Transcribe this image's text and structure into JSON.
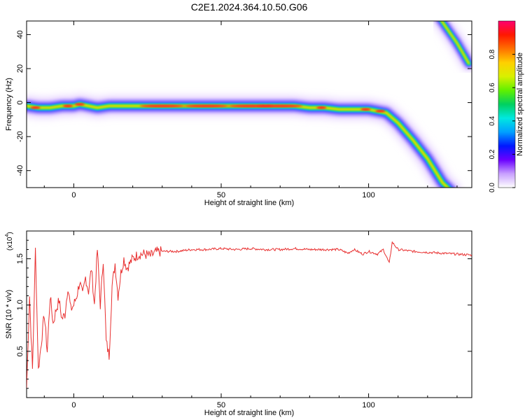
{
  "title": "C2E1.2024.364.10.50.G06",
  "chart_data": [
    {
      "type": "heatmap",
      "xlabel": "Height of straight line (km)",
      "ylabel": "Frequency (Hz)",
      "xlim": [
        -16,
        135
      ],
      "ylim": [
        -50,
        48
      ],
      "xticks": [
        0,
        50,
        100
      ],
      "yticks": [
        40,
        20,
        0,
        -20,
        -40
      ],
      "ridge": {
        "x": [
          -16,
          -12,
          -8,
          -4,
          0,
          2,
          5,
          8,
          12,
          20,
          40,
          60,
          75,
          80,
          85,
          90,
          95,
          100,
          103,
          106,
          110,
          115,
          120,
          125,
          128
        ],
        "y": [
          -2,
          -3,
          -3,
          -2,
          -2,
          -1,
          -2,
          -3,
          -2,
          -2,
          -2,
          -2,
          -2,
          -3,
          -3,
          -4,
          -4,
          -4,
          -5,
          -6,
          -12,
          -22,
          -33,
          -47,
          -52
        ]
      },
      "ridge2": {
        "x": [
          124,
          126,
          128,
          130,
          132,
          134
        ],
        "y": [
          50,
          45,
          40,
          35,
          29,
          23
        ]
      },
      "colorbar": {
        "label": "Normalized spectral amplitude",
        "range": [
          0,
          1
        ],
        "ticks": [
          0.0,
          0.2,
          0.4,
          0.6,
          0.8
        ],
        "tick_labels": [
          "0.0",
          "0.2",
          "0.4",
          "0.6",
          "0.8"
        ],
        "colors": [
          "#ffffff",
          "#c8a0ff",
          "#6a00ff",
          "#0018ff",
          "#00a0ff",
          "#00e8e0",
          "#00d060",
          "#60f000",
          "#d8f000",
          "#ffd000",
          "#ff7000",
          "#ff1800",
          "#ff0070"
        ]
      }
    },
    {
      "type": "line",
      "xlabel": "Height of straight line (km)",
      "ylabel": "SNR (10 * v/v)",
      "y_multiplier_label": "(x10",
      "y_multiplier_exp": "4",
      "xlim": [
        -16,
        135
      ],
      "ylim": [
        0,
        1.8
      ],
      "xticks": [
        0,
        50,
        100
      ],
      "yticks": [
        0.5,
        1.0,
        1.5
      ],
      "ytick_labels": [
        "0.5",
        "1.0",
        "1.5"
      ],
      "series": [
        {
          "color": "#e83030",
          "x": [
            -16,
            -15,
            -14,
            -13,
            -12,
            -11,
            -10,
            -9,
            -8,
            -7,
            -6,
            -5,
            -4,
            -3,
            -2,
            -1,
            0,
            1,
            2,
            3,
            4,
            5,
            6,
            7,
            8,
            9,
            10,
            11,
            12,
            13,
            14,
            15,
            16,
            17,
            18,
            20,
            22,
            24,
            26,
            28,
            30,
            35,
            40,
            45,
            50,
            55,
            60,
            65,
            70,
            75,
            80,
            85,
            90,
            93,
            95,
            98,
            100,
            103,
            105,
            107,
            108,
            110,
            115,
            120,
            125,
            130,
            135
          ],
          "y": [
            0.1,
            1.1,
            0.3,
            1.6,
            0.3,
            0.6,
            0.9,
            0.5,
            1.1,
            0.8,
            0.95,
            1.05,
            0.85,
            0.9,
            1.2,
            0.95,
            1.0,
            1.1,
            1.25,
            1.1,
            1.3,
            1.15,
            1.4,
            1.0,
            1.6,
            1.0,
            1.5,
            0.6,
            0.45,
            1.2,
            1.45,
            1.1,
            1.35,
            1.5,
            1.4,
            1.5,
            1.55,
            1.55,
            1.53,
            1.57,
            1.58,
            1.58,
            1.6,
            1.6,
            1.61,
            1.6,
            1.61,
            1.6,
            1.6,
            1.61,
            1.6,
            1.6,
            1.6,
            1.56,
            1.6,
            1.55,
            1.58,
            1.55,
            1.6,
            1.45,
            1.68,
            1.6,
            1.58,
            1.57,
            1.56,
            1.55,
            1.54
          ]
        }
      ]
    }
  ]
}
